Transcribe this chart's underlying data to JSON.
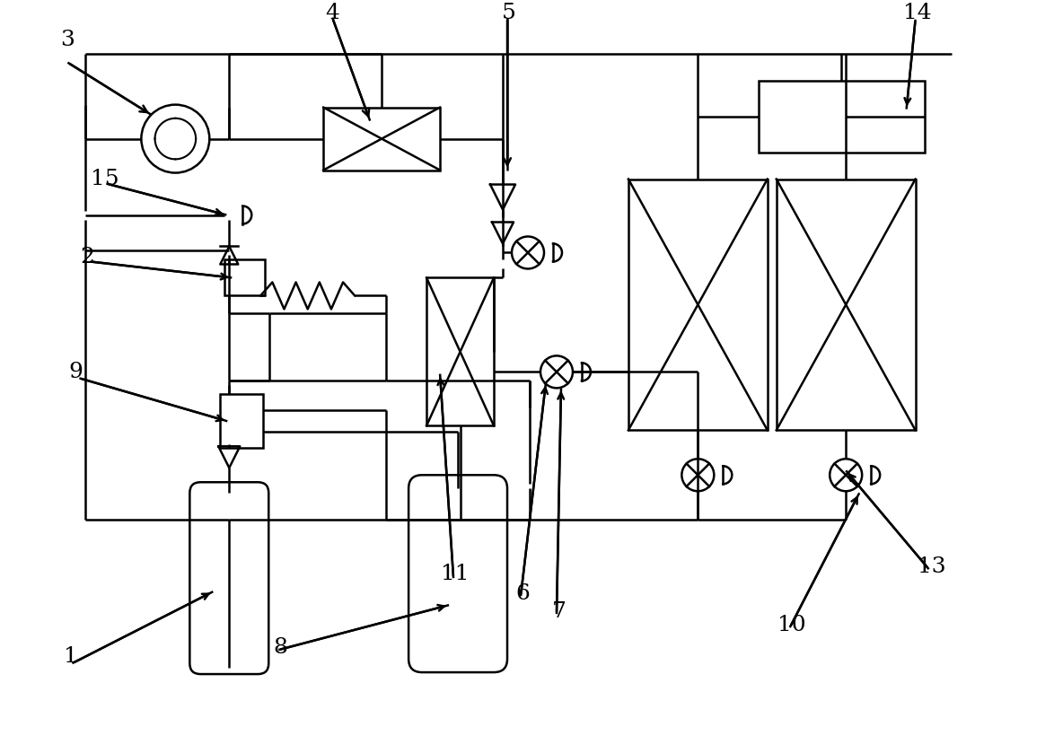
{
  "bg_color": "#ffffff",
  "lc": "#000000",
  "lw": 1.8,
  "fig_w": 11.74,
  "fig_h": 8.39
}
